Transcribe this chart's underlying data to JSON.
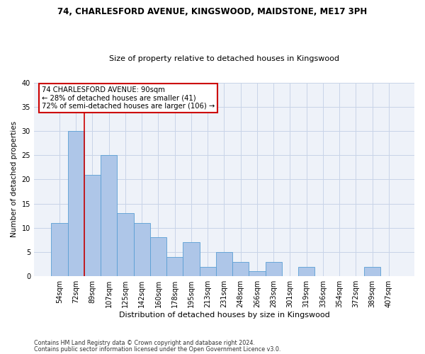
{
  "title1": "74, CHARLESFORD AVENUE, KINGSWOOD, MAIDSTONE, ME17 3PH",
  "title2": "Size of property relative to detached houses in Kingswood",
  "xlabel": "Distribution of detached houses by size in Kingswood",
  "ylabel": "Number of detached properties",
  "categories": [
    "54sqm",
    "72sqm",
    "89sqm",
    "107sqm",
    "125sqm",
    "142sqm",
    "160sqm",
    "178sqm",
    "195sqm",
    "213sqm",
    "231sqm",
    "248sqm",
    "266sqm",
    "283sqm",
    "301sqm",
    "319sqm",
    "336sqm",
    "354sqm",
    "372sqm",
    "389sqm",
    "407sqm"
  ],
  "values": [
    11,
    30,
    21,
    25,
    13,
    11,
    8,
    4,
    7,
    2,
    5,
    3,
    1,
    3,
    0,
    2,
    0,
    0,
    0,
    2,
    0
  ],
  "bar_color": "#aec6e8",
  "bar_edge_color": "#5a9fd4",
  "vline_x_index": 2,
  "vline_color": "#cc0000",
  "annotation_text": "74 CHARLESFORD AVENUE: 90sqm\n← 28% of detached houses are smaller (41)\n72% of semi-detached houses are larger (106) →",
  "annotation_box_color": "#ffffff",
  "annotation_box_edge": "#cc0000",
  "footer1": "Contains HM Land Registry data © Crown copyright and database right 2024.",
  "footer2": "Contains public sector information licensed under the Open Government Licence v3.0.",
  "ylim": [
    0,
    40
  ],
  "background_color": "#eef2f9"
}
